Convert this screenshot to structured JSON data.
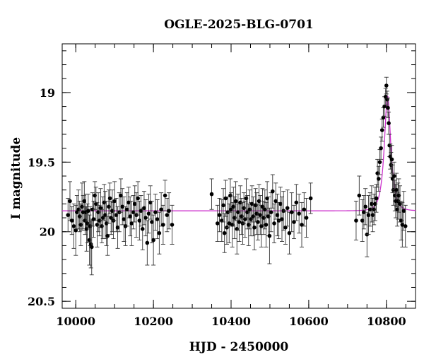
{
  "chart_data": {
    "type": "scatter",
    "title": "OGLE-2025-BLG-0701",
    "xlabel": "HJD - 2450000",
    "ylabel": "I magnitude",
    "xlim": [
      9965,
      10875
    ],
    "ylim": [
      20.55,
      18.65
    ],
    "y_inverted": true,
    "grid": false,
    "xticks": {
      "major": [
        10000,
        10200,
        10400,
        10600,
        10800
      ],
      "major_labels": [
        "10000",
        "10200",
        "10400",
        "10600",
        "10800"
      ],
      "minor_step": 50
    },
    "yticks": {
      "major": [
        19,
        19.5,
        20,
        20.5
      ],
      "major_labels": [
        "19",
        "19.5",
        "20",
        "20.5"
      ],
      "minor_step": 0.1
    },
    "colors": {
      "points": "#000000",
      "model": "#cc33cc",
      "axes": "#000000"
    },
    "series": [
      {
        "kind": "points_with_errorbars",
        "points": [
          [
            9980,
            19.88,
            0.12
          ],
          [
            9985,
            19.78,
            0.14
          ],
          [
            9990,
            19.92,
            0.1
          ],
          [
            9995,
            19.96,
            0.16
          ],
          [
            10000,
            19.99,
            0.18
          ],
          [
            10003,
            19.86,
            0.12
          ],
          [
            10007,
            19.84,
            0.14
          ],
          [
            10010,
            19.89,
            0.11
          ],
          [
            10013,
            19.95,
            0.15
          ],
          [
            10016,
            19.82,
            0.17
          ],
          [
            10019,
            19.86,
            0.12
          ],
          [
            10022,
            19.78,
            0.14
          ],
          [
            10024,
            19.92,
            0.1
          ],
          [
            10026,
            19.86,
            0.13
          ],
          [
            10028,
            19.98,
            0.16
          ],
          [
            10030,
            19.94,
            0.14
          ],
          [
            10032,
            19.85,
            0.12
          ],
          [
            10035,
            20.06,
            0.18
          ],
          [
            10037,
            19.96,
            0.14
          ],
          [
            10039,
            20.09,
            0.17
          ],
          [
            10041,
            20.11,
            0.2
          ],
          [
            10043,
            19.84,
            0.12
          ],
          [
            10046,
            19.91,
            0.13
          ],
          [
            10049,
            19.74,
            0.1
          ],
          [
            10052,
            19.8,
            0.12
          ],
          [
            10055,
            19.95,
            0.16
          ],
          [
            10058,
            19.86,
            0.14
          ],
          [
            10061,
            19.92,
            0.11
          ],
          [
            10064,
            19.83,
            0.14
          ],
          [
            10067,
            19.96,
            0.12
          ],
          [
            10070,
            19.9,
            0.15
          ],
          [
            10073,
            19.79,
            0.13
          ],
          [
            10076,
            19.88,
            0.17
          ],
          [
            10079,
            19.94,
            0.16
          ],
          [
            10082,
            20.03,
            0.14
          ],
          [
            10085,
            19.82,
            0.12
          ],
          [
            10088,
            19.76,
            0.11
          ],
          [
            10091,
            19.9,
            0.12
          ],
          [
            10094,
            19.85,
            0.15
          ],
          [
            10097,
            19.92,
            0.13
          ],
          [
            10100,
            19.78,
            0.14
          ],
          [
            10104,
            19.88,
            0.12
          ],
          [
            10108,
            19.97,
            0.15
          ],
          [
            10112,
            19.86,
            0.14
          ],
          [
            10116,
            19.74,
            0.12
          ],
          [
            10120,
            19.82,
            0.13
          ],
          [
            10124,
            19.91,
            0.16
          ],
          [
            10128,
            19.96,
            0.14
          ],
          [
            10132,
            19.84,
            0.12
          ],
          [
            10136,
            19.79,
            0.11
          ],
          [
            10140,
            19.89,
            0.14
          ],
          [
            10144,
            19.94,
            0.16
          ],
          [
            10148,
            19.86,
            0.12
          ],
          [
            10152,
            19.8,
            0.13
          ],
          [
            10156,
            19.88,
            0.16
          ],
          [
            10160,
            19.76,
            0.12
          ],
          [
            10164,
            19.92,
            0.14
          ],
          [
            10168,
            19.85,
            0.11
          ],
          [
            10172,
            19.98,
            0.15
          ],
          [
            10176,
            19.83,
            0.12
          ],
          [
            10180,
            19.9,
            0.13
          ],
          [
            10184,
            20.08,
            0.16
          ],
          [
            10188,
            19.87,
            0.14
          ],
          [
            10192,
            19.79,
            0.12
          ],
          [
            10196,
            19.93,
            0.15
          ],
          [
            10200,
            20.06,
            0.18
          ],
          [
            10205,
            19.86,
            0.13
          ],
          [
            10210,
            19.91,
            0.14
          ],
          [
            10215,
            20.01,
            0.15
          ],
          [
            10220,
            19.84,
            0.12
          ],
          [
            10225,
            19.95,
            0.14
          ],
          [
            10230,
            19.74,
            0.11
          ],
          [
            10235,
            19.88,
            0.12
          ],
          [
            10240,
            19.85,
            0.13
          ],
          [
            10248,
            19.95,
            0.14
          ],
          [
            10350,
            19.73,
            0.11
          ],
          [
            10365,
            19.94,
            0.13
          ],
          [
            10370,
            19.88,
            0.12
          ],
          [
            10376,
            19.92,
            0.15
          ],
          [
            10380,
            19.81,
            0.12
          ],
          [
            10383,
            20.01,
            0.14
          ],
          [
            10386,
            19.76,
            0.13
          ],
          [
            10389,
            19.97,
            0.12
          ],
          [
            10392,
            19.86,
            0.11
          ],
          [
            10395,
            19.94,
            0.14
          ],
          [
            10398,
            19.74,
            0.12
          ],
          [
            10400,
            19.84,
            0.12
          ],
          [
            10403,
            19.95,
            0.16
          ],
          [
            10406,
            19.82,
            0.14
          ],
          [
            10409,
            19.9,
            0.15
          ],
          [
            10412,
            19.78,
            0.14
          ],
          [
            10415,
            19.98,
            0.18
          ],
          [
            10418,
            19.86,
            0.13
          ],
          [
            10421,
            19.93,
            0.14
          ],
          [
            10424,
            19.79,
            0.12
          ],
          [
            10427,
            19.89,
            0.13
          ],
          [
            10430,
            19.94,
            0.15
          ],
          [
            10433,
            19.83,
            0.11
          ],
          [
            10436,
            19.91,
            0.13
          ],
          [
            10439,
            19.76,
            0.14
          ],
          [
            10442,
            19.86,
            0.12
          ],
          [
            10445,
            19.95,
            0.15
          ],
          [
            10448,
            19.84,
            0.14
          ],
          [
            10451,
            19.91,
            0.12
          ],
          [
            10454,
            19.8,
            0.13
          ],
          [
            10457,
            19.89,
            0.14
          ],
          [
            10460,
            19.97,
            0.16
          ],
          [
            10463,
            19.81,
            0.12
          ],
          [
            10466,
            19.87,
            0.15
          ],
          [
            10469,
            19.93,
            0.13
          ],
          [
            10472,
            19.78,
            0.12
          ],
          [
            10475,
            19.88,
            0.14
          ],
          [
            10478,
            19.96,
            0.15
          ],
          [
            10481,
            19.82,
            0.13
          ],
          [
            10484,
            19.9,
            0.12
          ],
          [
            10487,
            19.84,
            0.14
          ],
          [
            10490,
            19.95,
            0.16
          ],
          [
            10493,
            19.76,
            0.12
          ],
          [
            10496,
            19.89,
            0.14
          ],
          [
            10499,
            20.03,
            0.2
          ],
          [
            10503,
            19.86,
            0.14
          ],
          [
            10507,
            19.71,
            0.12
          ],
          [
            10511,
            19.94,
            0.14
          ],
          [
            10515,
            19.78,
            0.13
          ],
          [
            10519,
            19.88,
            0.15
          ],
          [
            10523,
            19.92,
            0.13
          ],
          [
            10527,
            19.8,
            0.12
          ],
          [
            10531,
            19.91,
            0.16
          ],
          [
            10535,
            19.85,
            0.14
          ],
          [
            10540,
            19.97,
            0.12
          ],
          [
            10545,
            19.83,
            0.13
          ],
          [
            10550,
            20.01,
            0.15
          ],
          [
            10556,
            19.86,
            0.14
          ],
          [
            10562,
            19.93,
            0.12
          ],
          [
            10568,
            19.79,
            0.13
          ],
          [
            10575,
            19.87,
            0.14
          ],
          [
            10582,
            19.95,
            0.16
          ],
          [
            10588,
            19.84,
            0.12
          ],
          [
            10594,
            19.9,
            0.14
          ],
          [
            10605,
            19.76,
            0.11
          ],
          [
            10722,
            19.92,
            0.14
          ],
          [
            10730,
            19.74,
            0.14
          ],
          [
            10738,
            19.92,
            0.15
          ],
          [
            10742,
            19.86,
            0.12
          ],
          [
            10746,
            19.82,
            0.13
          ],
          [
            10750,
            20.02,
            0.16
          ],
          [
            10754,
            19.88,
            0.14
          ],
          [
            10758,
            19.84,
            0.12
          ],
          [
            10762,
            19.8,
            0.13
          ],
          [
            10765,
            19.88,
            0.12
          ],
          [
            10768,
            19.84,
            0.11
          ],
          [
            10771,
            19.8,
            0.12
          ],
          [
            10774,
            19.76,
            0.1
          ],
          [
            10777,
            19.58,
            0.1
          ],
          [
            10780,
            19.62,
            0.09
          ],
          [
            10783,
            19.5,
            0.09
          ],
          [
            10786,
            19.4,
            0.08
          ],
          [
            10789,
            19.27,
            0.08
          ],
          [
            10792,
            19.18,
            0.07
          ],
          [
            10795,
            19.1,
            0.07
          ],
          [
            10798,
            19.03,
            0.06
          ],
          [
            10800,
            18.95,
            0.06
          ],
          [
            10802,
            19.05,
            0.06
          ],
          [
            10804,
            19.11,
            0.07
          ],
          [
            10806,
            19.22,
            0.08
          ],
          [
            10808,
            19.38,
            0.08
          ],
          [
            10810,
            19.46,
            0.09
          ],
          [
            10812,
            19.52,
            0.09
          ],
          [
            10814,
            19.48,
            0.1
          ],
          [
            10816,
            19.62,
            0.1
          ],
          [
            10818,
            19.7,
            0.11
          ],
          [
            10820,
            19.6,
            0.1
          ],
          [
            10822,
            19.74,
            0.11
          ],
          [
            10824,
            19.78,
            0.12
          ],
          [
            10826,
            19.7,
            0.12
          ],
          [
            10828,
            19.84,
            0.12
          ],
          [
            10830,
            19.78,
            0.13
          ],
          [
            10832,
            19.74,
            0.12
          ],
          [
            10835,
            19.8,
            0.13
          ],
          [
            10838,
            19.92,
            0.14
          ],
          [
            10841,
            19.95,
            0.16
          ],
          [
            10845,
            19.85,
            0.14
          ],
          [
            10849,
            19.96,
            0.15
          ]
        ]
      },
      {
        "kind": "model_line",
        "baseline": 19.85,
        "peak_mag": 19.02,
        "t0": 10803,
        "tE": 14
      }
    ]
  }
}
